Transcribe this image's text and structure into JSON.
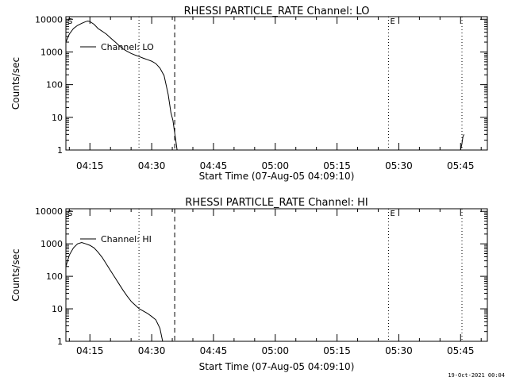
{
  "footer": {
    "date": "19-Oct-2021 00:04"
  },
  "chart_data": [
    {
      "type": "line",
      "title": "RHESSI PARTICLE_RATE Channel: LO",
      "xlabel": "Start Time (07-Aug-05 04:09:10)",
      "ylabel": "Counts/sec",
      "xlim": [
        "04:09:10",
        "05:51:30"
      ],
      "y_scale": "log",
      "ylim": [
        1,
        12000
      ],
      "x_ticks": [
        "04:15",
        "04:30",
        "04:45",
        "05:00",
        "05:15",
        "05:30",
        "05:45"
      ],
      "y_ticks": [
        "1",
        "10",
        "100",
        "1000",
        "10000"
      ],
      "legend": {
        "entry": "Channel: LO",
        "placement": "top-left"
      },
      "markers": [
        {
          "label": "S",
          "time": "04:09:10",
          "style": "none"
        },
        {
          "label": "",
          "time": "04:26:55",
          "style": "dotted"
        },
        {
          "label": "",
          "time": "04:35:35",
          "style": "dashed"
        },
        {
          "label": "E",
          "time": "05:27:30",
          "style": "dotted"
        },
        {
          "label": "",
          "time": "05:45:20",
          "style": "dotted"
        }
      ],
      "series": [
        {
          "name": "Channel: LO",
          "points": [
            [
              "04:09:10",
              2000
            ],
            [
              "04:10:00",
              3500
            ],
            [
              "04:11:00",
              5200
            ],
            [
              "04:12:00",
              6500
            ],
            [
              "04:13:00",
              7500
            ],
            [
              "04:14:00",
              8500
            ],
            [
              "04:14:30",
              8800
            ],
            [
              "04:15:00",
              8500
            ],
            [
              "04:16:00",
              7000
            ],
            [
              "04:17:00",
              5200
            ],
            [
              "04:18:00",
              4300
            ],
            [
              "04:19:00",
              3500
            ],
            [
              "04:20:00",
              2700
            ],
            [
              "04:21:00",
              2100
            ],
            [
              "04:22:00",
              1600
            ],
            [
              "04:23:00",
              1250
            ],
            [
              "04:24:00",
              1050
            ],
            [
              "04:25:00",
              900
            ],
            [
              "04:26:00",
              800
            ],
            [
              "04:27:00",
              720
            ],
            [
              "04:28:00",
              640
            ],
            [
              "04:29:00",
              580
            ],
            [
              "04:30:00",
              520
            ],
            [
              "04:31:00",
              440
            ],
            [
              "04:32:00",
              320
            ],
            [
              "04:33:00",
              190
            ],
            [
              "04:34:00",
              50
            ],
            [
              "04:34:40",
              14
            ],
            [
              "04:35:10",
              8
            ],
            [
              "04:35:30",
              4
            ],
            [
              "04:35:50",
              2
            ],
            [
              "04:36:10",
              1
            ]
          ]
        },
        {
          "name": "Channel: LO",
          "points": [
            [
              "05:45:00",
              1
            ],
            [
              "05:45:20",
              1.6
            ],
            [
              "05:45:35",
              2.6
            ],
            [
              "05:45:50",
              3
            ]
          ]
        }
      ]
    },
    {
      "type": "line",
      "title": "RHESSI PARTICLE_RATE Channel: HI",
      "xlabel": "Start Time (07-Aug-05 04:09:10)",
      "ylabel": "Counts/sec",
      "xlim": [
        "04:09:10",
        "05:51:30"
      ],
      "y_scale": "log",
      "ylim": [
        1,
        12000
      ],
      "x_ticks": [
        "04:15",
        "04:30",
        "04:45",
        "05:00",
        "05:15",
        "05:30",
        "05:45"
      ],
      "y_ticks": [
        "1",
        "10",
        "100",
        "1000",
        "10000"
      ],
      "legend": {
        "entry": "Channel: HI",
        "placement": "top-left"
      },
      "markers": [
        {
          "label": "S",
          "time": "04:09:10",
          "style": "none"
        },
        {
          "label": "",
          "time": "04:26:55",
          "style": "dotted"
        },
        {
          "label": "",
          "time": "04:35:35",
          "style": "dashed"
        },
        {
          "label": "E",
          "time": "05:27:30",
          "style": "dotted"
        },
        {
          "label": "",
          "time": "05:45:20",
          "style": "dotted"
        }
      ],
      "series": [
        {
          "name": "Channel: HI",
          "points": [
            [
              "04:09:10",
              200
            ],
            [
              "04:10:00",
              450
            ],
            [
              "04:11:00",
              750
            ],
            [
              "04:12:00",
              1000
            ],
            [
              "04:13:00",
              1100
            ],
            [
              "04:14:00",
              1000
            ],
            [
              "04:15:00",
              900
            ],
            [
              "04:16:00",
              750
            ],
            [
              "04:17:00",
              550
            ],
            [
              "04:18:00",
              380
            ],
            [
              "04:19:00",
              240
            ],
            [
              "04:20:00",
              150
            ],
            [
              "04:21:00",
              95
            ],
            [
              "04:22:00",
              60
            ],
            [
              "04:23:00",
              38
            ],
            [
              "04:24:00",
              25
            ],
            [
              "04:25:00",
              17
            ],
            [
              "04:26:00",
              13
            ],
            [
              "04:27:00",
              10
            ],
            [
              "04:28:00",
              8.5
            ],
            [
              "04:29:00",
              7.2
            ],
            [
              "04:30:00",
              5.8
            ],
            [
              "04:31:00",
              4.6
            ],
            [
              "04:32:00",
              2.5
            ],
            [
              "04:32:40",
              1
            ]
          ]
        }
      ]
    }
  ]
}
